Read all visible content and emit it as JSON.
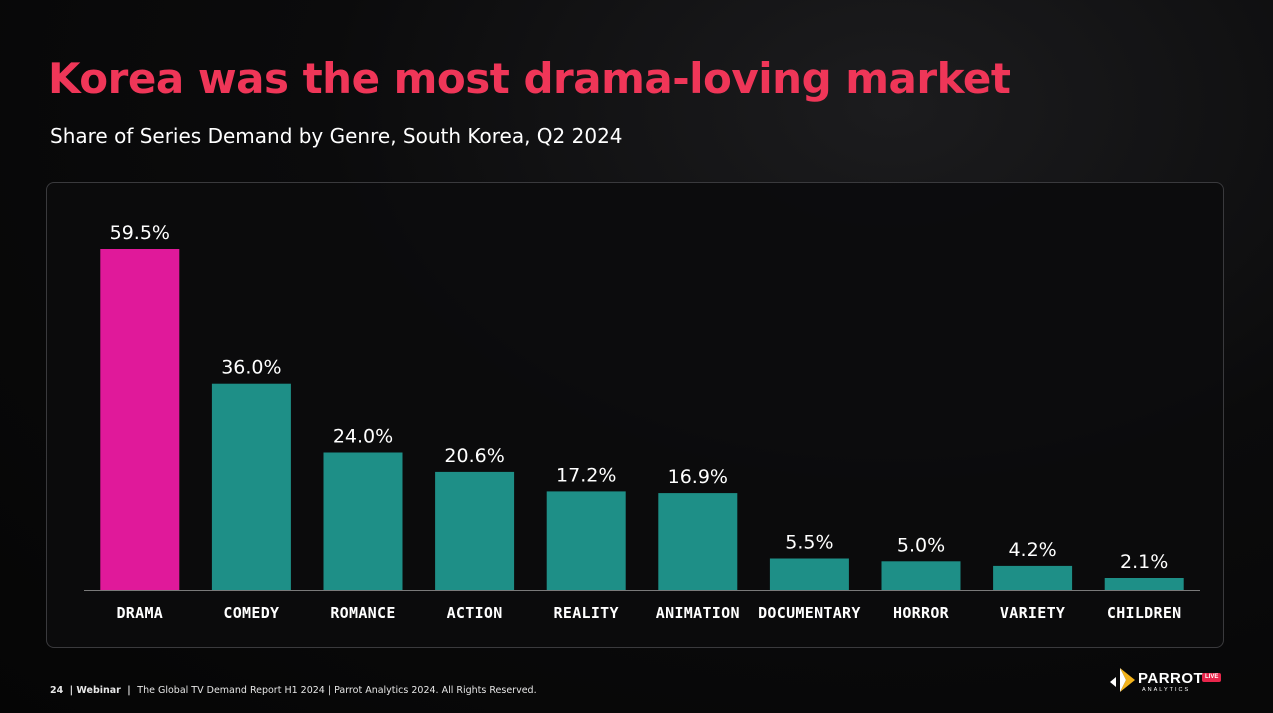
{
  "header": {
    "title": "Korea was the most drama-loving market",
    "subtitle": "Share of Series Demand by Genre, South Korea, Q2 2024"
  },
  "chart_data": {
    "type": "bar",
    "title": "",
    "xlabel": "",
    "ylabel": "",
    "categories": [
      "DRAMA",
      "COMEDY",
      "ROMANCE",
      "ACTION",
      "REALITY",
      "ANIMATION",
      "DOCUMENTARY",
      "HORROR",
      "VARIETY",
      "CHILDREN"
    ],
    "values": [
      59.5,
      36.0,
      24.0,
      20.6,
      17.2,
      16.9,
      5.5,
      5.0,
      4.2,
      2.1
    ],
    "value_labels": [
      "59.5%",
      "36.0%",
      "24.0%",
      "20.6%",
      "17.2%",
      "16.9%",
      "5.5%",
      "5.0%",
      "4.2%",
      "2.1%"
    ],
    "ylim": [
      0,
      59.5
    ],
    "grid": false,
    "legend": "none",
    "highlight_index": 0,
    "colors": {
      "highlight": "#e0199a",
      "default": "#1e8f87",
      "baseline": "#7a7a7a"
    }
  },
  "footer": {
    "page": "24",
    "section": "Webinar",
    "text": "The Global TV Demand Report H1 2024  |  Parrot Analytics 2024. All Rights Reserved."
  },
  "logo": {
    "name": "PARROT",
    "sub": "ANALYTICS",
    "badge": "LIVE",
    "icon": "parrot-logo-icon"
  }
}
